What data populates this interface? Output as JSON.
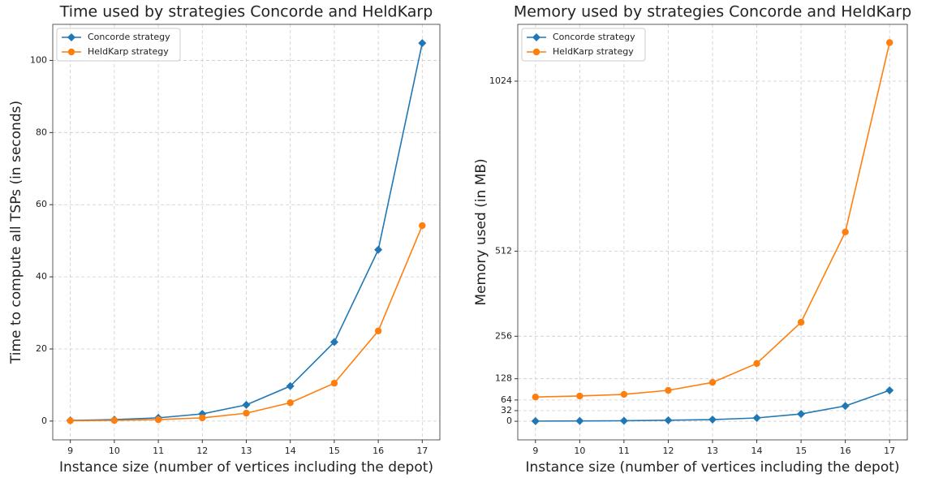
{
  "chart_data": [
    {
      "type": "line",
      "title": "Time used by strategies Concorde and HeldKarp",
      "x_label": "Instance size (number of vertices including the depot)",
      "y_label": "Time to compute all TSPs (in seconds)",
      "x": [
        9,
        10,
        11,
        12,
        13,
        14,
        15,
        16,
        17
      ],
      "series": [
        {
          "name": "Concorde strategy",
          "color": "#1f77b4",
          "marker": "diamond",
          "values": [
            0.2,
            0.4,
            0.9,
            2.0,
            4.5,
            9.7,
            21.9,
            47.5,
            104.8
          ]
        },
        {
          "name": "HeldKarp strategy",
          "color": "#ff7f0e",
          "marker": "circle",
          "values": [
            0.1,
            0.2,
            0.4,
            0.9,
            2.2,
            5.1,
            10.5,
            25.0,
            54.2
          ]
        }
      ],
      "xlim": [
        8.6,
        17.4
      ],
      "xticks": [
        9,
        10,
        11,
        12,
        13,
        14,
        15,
        16,
        17
      ],
      "ylim": [
        -5.2,
        110
      ],
      "yticks": [
        0,
        20,
        40,
        60,
        80,
        100
      ],
      "grid": true,
      "legend": "upper left"
    },
    {
      "type": "line",
      "title": "Memory used by strategies Concorde and HeldKarp",
      "x_label": "Instance size (number of vertices including the depot)",
      "y_label": "Memory used (in MB)",
      "x": [
        9,
        10,
        11,
        12,
        13,
        14,
        15,
        16,
        17
      ],
      "series": [
        {
          "name": "Concorde strategy",
          "color": "#1f77b4",
          "marker": "diamond",
          "values": [
            0.5,
            1,
            1.5,
            3,
            5,
            10,
            22,
            46,
            93
          ]
        },
        {
          "name": "HeldKarp strategy",
          "color": "#ff7f0e",
          "marker": "circle",
          "values": [
            73,
            76,
            81,
            93,
            117,
            174,
            298,
            570,
            1140
          ]
        }
      ],
      "xlim": [
        8.6,
        17.4
      ],
      "xticks": [
        9,
        10,
        11,
        12,
        13,
        14,
        15,
        16,
        17
      ],
      "ylim": [
        -56,
        1195
      ],
      "yticks": [
        0,
        32,
        64,
        128,
        256,
        512,
        1024
      ],
      "grid": true,
      "legend": "upper left"
    }
  ]
}
